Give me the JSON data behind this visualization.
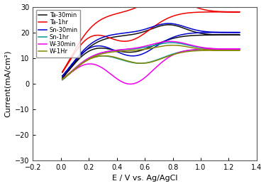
{
  "title": "",
  "xlabel": "E / V vs. Ag/AgCl",
  "ylabel": "Current(mA/cm²)",
  "xlim": [
    -0.2,
    1.4
  ],
  "ylim": [
    -30,
    30
  ],
  "xticks": [
    -0.2,
    0.0,
    0.2,
    0.4,
    0.6,
    0.8,
    1.0,
    1.2,
    1.4
  ],
  "yticks": [
    -30,
    -20,
    -10,
    0,
    10,
    20,
    30
  ],
  "series": [
    {
      "label": "Ta-30min",
      "color": "#111111",
      "lw": 1.1
    },
    {
      "label": "Ta-1hr",
      "color": "#ee0000",
      "lw": 1.1
    },
    {
      "label": "Sn-30min",
      "color": "#0000cc",
      "lw": 1.1
    },
    {
      "label": "Sn-1hr",
      "color": "#009999",
      "lw": 1.1
    },
    {
      "label": "W-30min",
      "color": "#ee00ee",
      "lw": 1.1
    },
    {
      "label": "W-1Hr",
      "color": "#888800",
      "lw": 1.1
    }
  ],
  "background_color": "#ffffff",
  "legend_fontsize": 6.0,
  "axis_fontsize": 8,
  "tick_fontsize": 7
}
